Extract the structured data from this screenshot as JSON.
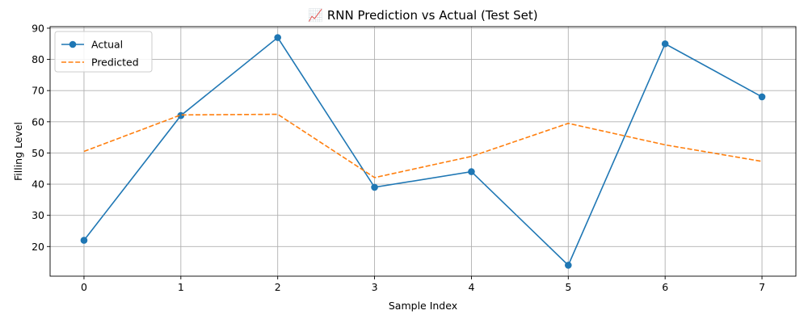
{
  "chart_data": {
    "type": "line",
    "title": "📈 RNN Prediction vs Actual (Test Set)",
    "xlabel": "Sample Index",
    "ylabel": "Filling Level",
    "x": [
      0,
      1,
      2,
      3,
      4,
      5,
      6,
      7
    ],
    "xlim": [
      -0.35,
      7.35
    ],
    "ylim": [
      10.5,
      90.5
    ],
    "xticks": [
      0,
      1,
      2,
      3,
      4,
      5,
      6,
      7
    ],
    "yticks": [
      20,
      30,
      40,
      50,
      60,
      70,
      80,
      90
    ],
    "grid": true,
    "legend": "top-left",
    "series": [
      {
        "name": "Actual",
        "values": [
          22,
          62,
          87,
          39,
          44,
          14,
          85,
          68
        ],
        "color": "#1f77b4",
        "style": "solid",
        "marker": "circle"
      },
      {
        "name": "Predicted",
        "values": [
          50.5,
          62.2,
          62.4,
          42.1,
          48.9,
          59.5,
          52.6,
          47.3
        ],
        "color": "#ff7f0e",
        "style": "dashed",
        "marker": "none"
      }
    ]
  }
}
